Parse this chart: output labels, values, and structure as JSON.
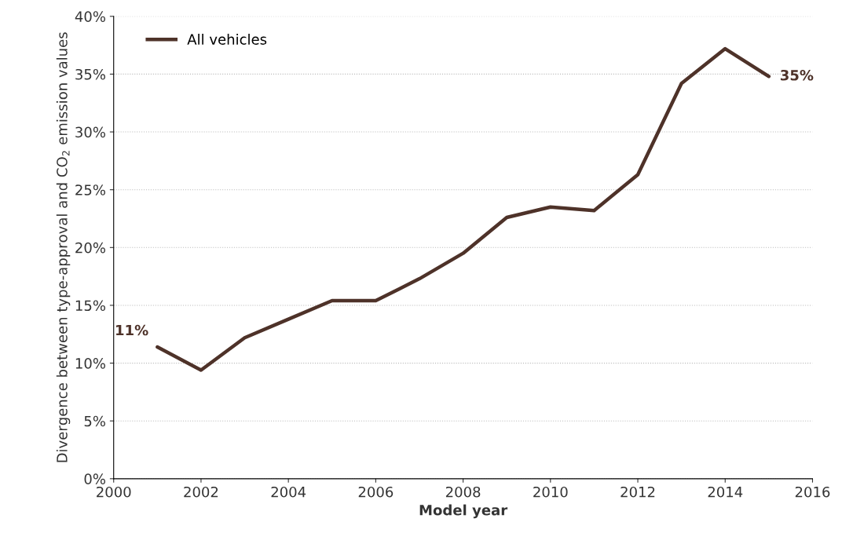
{
  "chart_data": {
    "type": "line",
    "xlabel": "Model year",
    "ylabel": "Divergence between type-approval and CO$_{2}$ emission values",
    "x": [
      2001,
      2002,
      2003,
      2004,
      2005,
      2006,
      2007,
      2008,
      2009,
      2010,
      2011,
      2012,
      2013,
      2014,
      2015
    ],
    "series": [
      {
        "name": "All vehicles",
        "color": "#4e3229",
        "values": [
          11.4,
          9.4,
          12.2,
          13.8,
          15.4,
          15.4,
          17.3,
          19.5,
          22.6,
          23.5,
          23.2,
          26.3,
          34.2,
          37.2,
          34.8
        ]
      }
    ],
    "xlim": [
      2000,
      2016
    ],
    "xticks": [
      2000,
      2002,
      2004,
      2006,
      2008,
      2010,
      2012,
      2014,
      2016
    ],
    "ylim": [
      0,
      40
    ],
    "yticks": [
      {
        "value": 0,
        "label": "0%"
      },
      {
        "value": 5,
        "label": "5%"
      },
      {
        "value": 10,
        "label": "10%"
      },
      {
        "value": 15,
        "label": "15%"
      },
      {
        "value": 20,
        "label": "20%"
      },
      {
        "value": 25,
        "label": "25%"
      },
      {
        "value": 30,
        "label": "30%"
      },
      {
        "value": 35,
        "label": "35%"
      },
      {
        "value": 40,
        "label": "40%"
      }
    ],
    "annotations": [
      {
        "text": "11%",
        "x": 2001,
        "y": 11.4
      },
      {
        "text": "35%",
        "x": 2015,
        "y": 34.8
      }
    ],
    "grid": "y",
    "legend": "top left",
    "line_style": "solid",
    "marker": "none"
  }
}
